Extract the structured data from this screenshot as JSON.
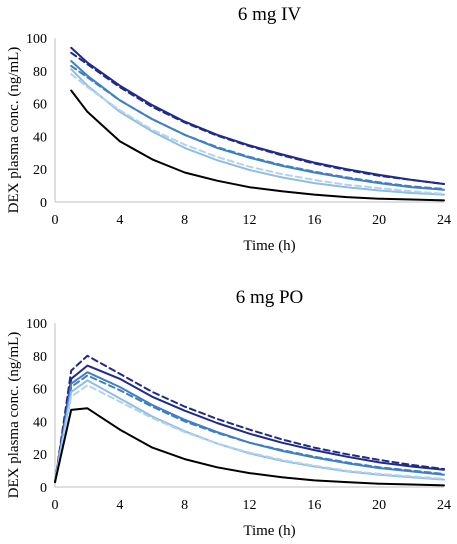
{
  "chart_data": [
    {
      "type": "line",
      "title": "6 mg IV",
      "xlabel": "Time (h)",
      "ylabel": "DEX plasma conc. (ng/mL)",
      "xlim": [
        0,
        24
      ],
      "ylim": [
        0,
        100
      ],
      "xticks": [
        0,
        4,
        8,
        12,
        16,
        20,
        24
      ],
      "yticks": [
        0,
        20,
        40,
        60,
        80,
        100
      ],
      "grid": false,
      "series": [
        {
          "color": "#1f2a8c",
          "dash": false,
          "x": [
            1,
            2,
            4,
            6,
            8,
            10,
            12,
            14,
            16,
            18,
            20,
            22,
            24
          ],
          "y": [
            94,
            85,
            71,
            59,
            49,
            41,
            34.5,
            29,
            24,
            20,
            16.5,
            13.5,
            11
          ]
        },
        {
          "color": "#1f2a8c",
          "dash": true,
          "x": [
            1,
            2,
            4,
            6,
            8,
            10,
            12,
            14,
            16,
            18,
            20,
            22,
            24
          ],
          "y": [
            91,
            84,
            70,
            58,
            48.5,
            40.5,
            34,
            28.5,
            23.5,
            19.5,
            16,
            13.5,
            11
          ]
        },
        {
          "color": "#3f7fc4",
          "dash": false,
          "x": [
            1,
            2,
            4,
            6,
            8,
            10,
            12,
            14,
            16,
            18,
            20,
            22,
            24
          ],
          "y": [
            86,
            77,
            62,
            50.5,
            41,
            33,
            27,
            22,
            18,
            14.5,
            11.5,
            9,
            7.5
          ]
        },
        {
          "color": "#3f7fc4",
          "dash": true,
          "x": [
            1,
            2,
            4,
            6,
            8,
            10,
            12,
            14,
            16,
            18,
            20,
            22,
            24
          ],
          "y": [
            83,
            76,
            62,
            50.5,
            41,
            33.5,
            27.5,
            22.5,
            18.5,
            15,
            12,
            9.5,
            8
          ]
        },
        {
          "color": "#8fbde4",
          "dash": false,
          "x": [
            1,
            2,
            4,
            6,
            8,
            10,
            12,
            14,
            16,
            18,
            20,
            22,
            24
          ],
          "y": [
            81,
            71,
            55,
            43,
            33,
            25.5,
            19.5,
            15,
            11.5,
            9,
            7,
            5.5,
            4.5
          ]
        },
        {
          "color": "#b4d2ee",
          "dash": true,
          "x": [
            1,
            2,
            4,
            6,
            8,
            10,
            12,
            14,
            16,
            18,
            20,
            22,
            24
          ],
          "y": [
            78,
            70,
            56,
            44,
            35,
            27.5,
            21.5,
            17,
            13.5,
            10.5,
            8.5,
            6.5,
            5
          ]
        },
        {
          "color": "#000000",
          "dash": false,
          "x": [
            1,
            2,
            4,
            6,
            8,
            10,
            12,
            14,
            16,
            18,
            20,
            22,
            24
          ],
          "y": [
            68,
            55,
            37,
            26,
            18,
            13,
            9,
            6.5,
            4.5,
            3,
            2,
            1.5,
            1
          ]
        }
      ]
    },
    {
      "type": "line",
      "title": "6 mg PO",
      "xlabel": "Time (h)",
      "ylabel": "DEX plasma conc. (ng/mL)",
      "xlim": [
        0,
        24
      ],
      "ylim": [
        0,
        100
      ],
      "xticks": [
        0,
        4,
        8,
        12,
        16,
        20,
        24
      ],
      "yticks": [
        0,
        20,
        40,
        60,
        80,
        100
      ],
      "grid": false,
      "series": [
        {
          "color": "#1f2a8c",
          "dash": true,
          "x": [
            0,
            1,
            2,
            4,
            6,
            8,
            10,
            12,
            14,
            16,
            18,
            20,
            22,
            24
          ],
          "y": [
            3,
            71,
            80,
            69,
            58,
            49,
            41.5,
            35,
            29,
            24,
            20,
            16.5,
            13.5,
            11
          ]
        },
        {
          "color": "#1f2a8c",
          "dash": false,
          "x": [
            0,
            1,
            2,
            4,
            6,
            8,
            10,
            12,
            14,
            16,
            18,
            20,
            22,
            24
          ],
          "y": [
            3,
            66,
            74,
            66,
            55,
            46.5,
            39,
            32.5,
            27,
            22.5,
            18.5,
            15,
            12.5,
            10.5
          ]
        },
        {
          "color": "#3f7fc4",
          "dash": false,
          "x": [
            0,
            1,
            2,
            4,
            6,
            8,
            10,
            12,
            14,
            16,
            18,
            20,
            22,
            24
          ],
          "y": [
            3,
            63,
            70,
            61,
            50,
            41,
            33.5,
            27,
            22,
            18,
            14.5,
            11.5,
            9.5,
            7.5
          ]
        },
        {
          "color": "#3f7fc4",
          "dash": true,
          "x": [
            0,
            1,
            2,
            4,
            6,
            8,
            10,
            12,
            14,
            16,
            18,
            20,
            22,
            24
          ],
          "y": [
            3,
            61,
            68,
            59,
            49,
            40,
            33,
            27,
            22.5,
            18.5,
            15,
            12,
            10,
            8
          ]
        },
        {
          "color": "#8fbde4",
          "dash": false,
          "x": [
            0,
            1,
            2,
            4,
            6,
            8,
            10,
            12,
            14,
            16,
            18,
            20,
            22,
            24
          ],
          "y": [
            3,
            58,
            65,
            54,
            43,
            34,
            26.5,
            20.5,
            16,
            12.5,
            9.5,
            7.5,
            6,
            4.5
          ]
        },
        {
          "color": "#b4d2ee",
          "dash": true,
          "x": [
            0,
            1,
            2,
            4,
            6,
            8,
            10,
            12,
            14,
            16,
            18,
            20,
            22,
            24
          ],
          "y": [
            3,
            55,
            62,
            52,
            42,
            33.5,
            26.5,
            21,
            16.5,
            13,
            10,
            8,
            6.5,
            5
          ]
        },
        {
          "color": "#000000",
          "dash": false,
          "x": [
            0,
            1,
            2,
            4,
            6,
            8,
            10,
            12,
            14,
            16,
            18,
            20,
            22,
            24
          ],
          "y": [
            3,
            47,
            48,
            35,
            24,
            17,
            12,
            8.5,
            6,
            4,
            3,
            2,
            1.5,
            1
          ]
        }
      ]
    }
  ]
}
